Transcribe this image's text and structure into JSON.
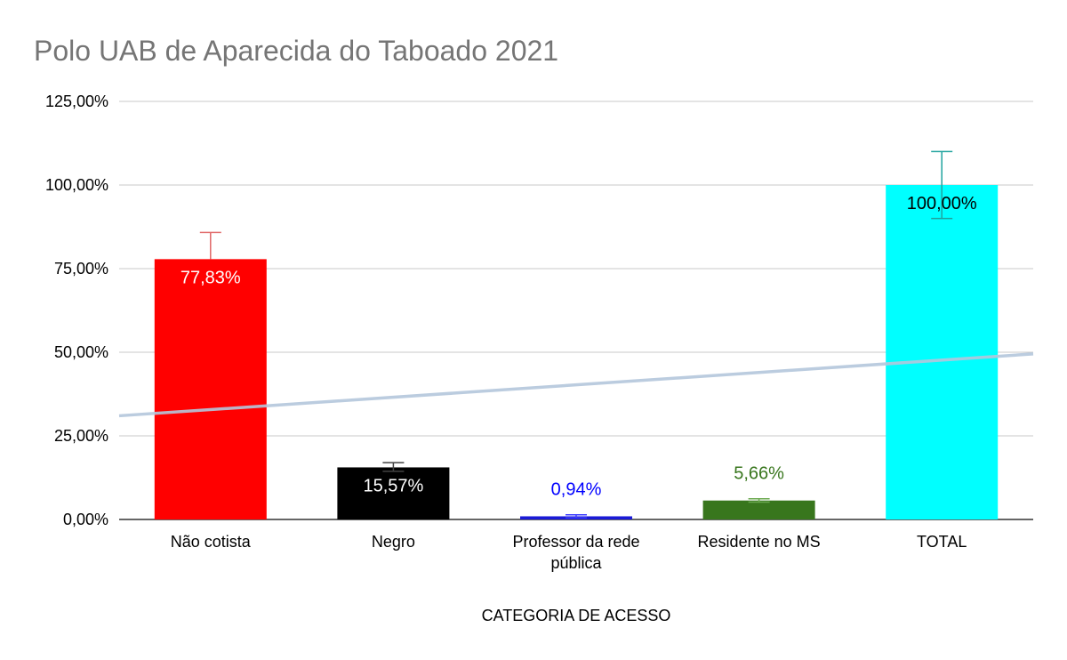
{
  "chart_data": {
    "type": "bar",
    "title": "Polo UAB de Aparecida do Taboado 2021",
    "xlabel": "CATEGORIA DE ACESSO",
    "ylabel": "",
    "ylim": [
      0,
      125
    ],
    "yticks": [
      "0,00%",
      "25,00%",
      "50,00%",
      "75,00%",
      "100,00%",
      "125,00%"
    ],
    "ytick_values": [
      0,
      25,
      50,
      75,
      100,
      125
    ],
    "grid": true,
    "categories": [
      [
        "Não cotista"
      ],
      [
        "Negro"
      ],
      [
        "Professor da rede",
        "pública"
      ],
      [
        "Residente no MS"
      ],
      [
        "TOTAL"
      ]
    ],
    "values": [
      77.83,
      15.57,
      0.94,
      5.66,
      100.0
    ],
    "data_labels": [
      "77,83%",
      "15,57%",
      "0,94%",
      "5,66%",
      "100,00%"
    ],
    "colors": [
      "#ff0000",
      "#000000",
      "#1a1ad6",
      "#38761d",
      "#00ffff"
    ],
    "error_bar_colors": [
      "#e06666",
      "#434343",
      "#3c3cff",
      "#6aa84f",
      "#20a39e"
    ],
    "label_colors": [
      "#ffffff",
      "#ffffff",
      "#0000ff",
      "#38761d",
      "#000000"
    ],
    "label_position": [
      "inside",
      "inside",
      "above",
      "above",
      "inside"
    ],
    "error_ranges": [
      [
        77.83,
        85.8
      ],
      [
        14.4,
        17.0
      ],
      [
        0.5,
        1.4
      ],
      [
        5.2,
        6.2
      ],
      [
        90.0,
        110.0
      ]
    ],
    "trendline": {
      "type": "linear",
      "start": 31.0,
      "end": 49.5,
      "color": "#b4c7dc"
    }
  }
}
